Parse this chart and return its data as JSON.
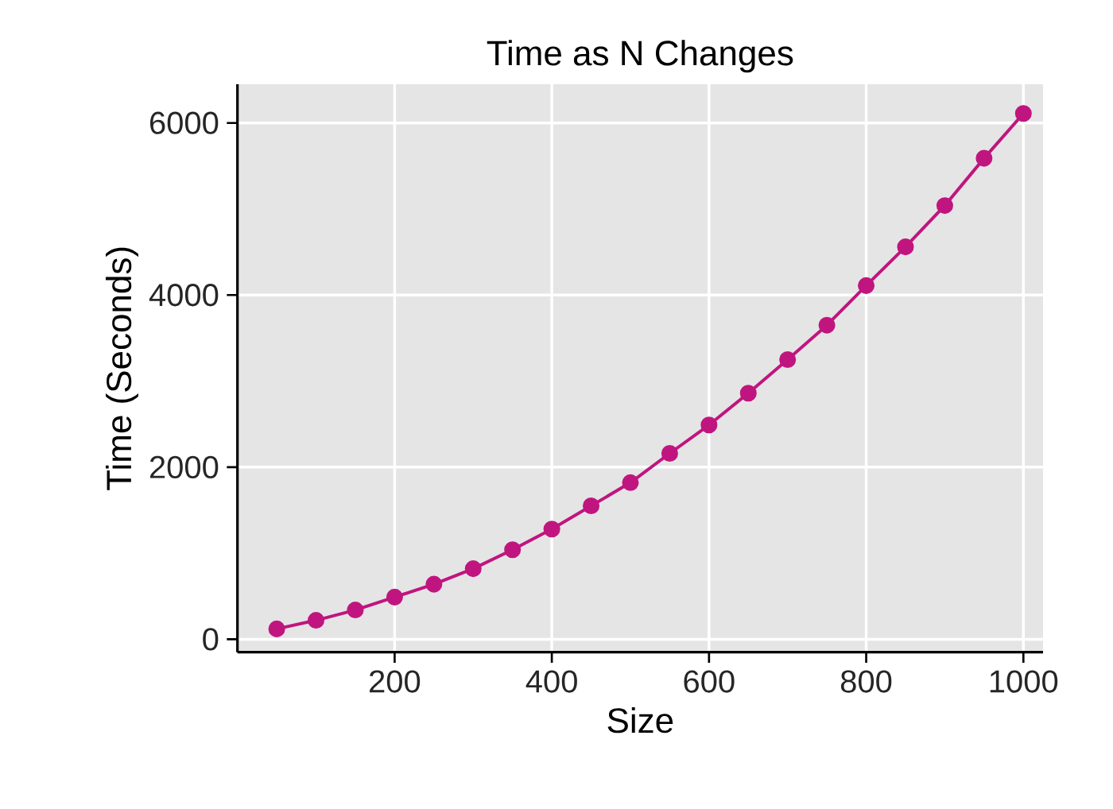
{
  "chart_data": {
    "type": "line",
    "title": "Time as N Changes",
    "xlabel": "Size",
    "ylabel": "Time (Seconds)",
    "x": [
      50,
      100,
      150,
      200,
      250,
      300,
      350,
      400,
      450,
      500,
      550,
      600,
      650,
      700,
      750,
      800,
      850,
      900,
      950,
      1000
    ],
    "series": [
      {
        "color": "#c0157f",
        "values": [
          120,
          220,
          340,
          490,
          640,
          820,
          1040,
          1280,
          1550,
          1820,
          2160,
          2490,
          2860,
          3250,
          3650,
          4110,
          4560,
          5040,
          5590,
          6110
        ]
      }
    ],
    "xlim": [
      0,
      1025
    ],
    "ylim": [
      -150,
      6450
    ],
    "xticks": [
      200,
      400,
      600,
      800,
      1000
    ],
    "yticks": [
      0,
      2000,
      4000,
      6000
    ],
    "grid": true,
    "marker": "circle",
    "line_style": "solid"
  }
}
